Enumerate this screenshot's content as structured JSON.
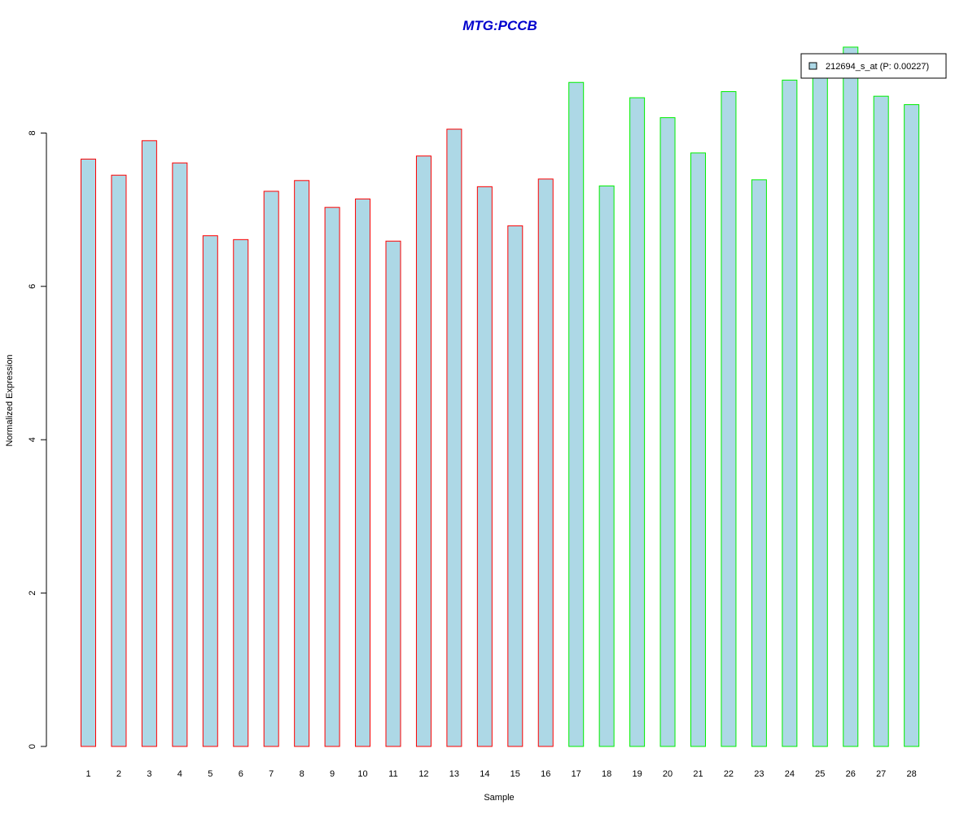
{
  "chart_data": {
    "type": "bar",
    "title": "MTG:PCCB",
    "xlabel": "Sample",
    "ylabel": "Normalized Expression",
    "categories": [
      "1",
      "2",
      "3",
      "4",
      "5",
      "6",
      "7",
      "8",
      "9",
      "10",
      "11",
      "12",
      "13",
      "14",
      "15",
      "16",
      "17",
      "18",
      "19",
      "20",
      "21",
      "22",
      "23",
      "24",
      "25",
      "26",
      "27",
      "28"
    ],
    "series": [
      {
        "name": "212694_s_at (P: 0.00227)",
        "values": [
          7.66,
          7.45,
          7.9,
          7.61,
          6.66,
          6.61,
          7.24,
          7.38,
          7.03,
          7.14,
          6.59,
          7.7,
          8.05,
          7.3,
          6.79,
          7.4,
          8.66,
          7.31,
          8.46,
          8.2,
          7.74,
          8.54,
          7.39,
          8.69,
          8.88,
          9.12,
          8.48,
          8.37
        ]
      }
    ],
    "group_of_bar": [
      "a",
      "a",
      "a",
      "a",
      "a",
      "a",
      "a",
      "a",
      "a",
      "a",
      "a",
      "a",
      "a",
      "a",
      "a",
      "a",
      "b",
      "b",
      "b",
      "b",
      "b",
      "b",
      "b",
      "b",
      "b",
      "b",
      "b",
      "b"
    ],
    "yticks": [
      0,
      2,
      4,
      6,
      8
    ],
    "ylim": [
      0,
      9.12
    ],
    "grid": false,
    "legend_position": "top-right",
    "colors": {
      "bar_fill": "#add8e6",
      "group_a_border": "#ff0000",
      "group_b_border": "#00ee00",
      "title": "#0000cd",
      "axis": "#000000"
    }
  }
}
